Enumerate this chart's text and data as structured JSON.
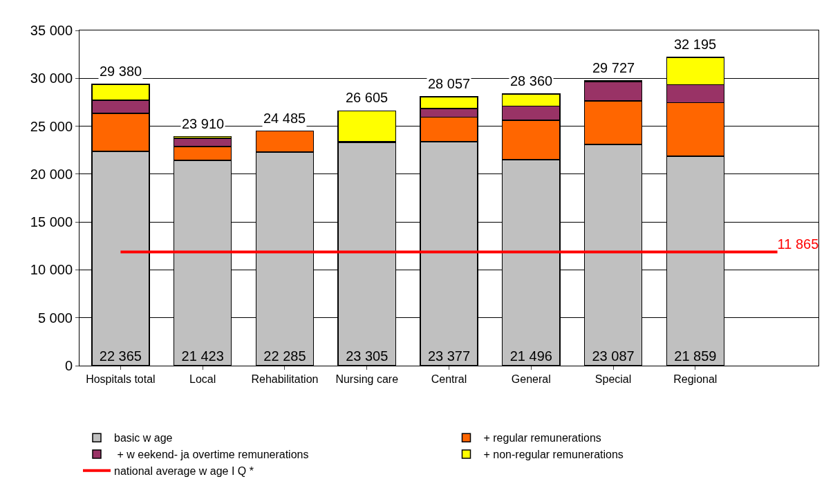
{
  "chart_data": {
    "type": "bar",
    "stacked": true,
    "categories": [
      "Hospitals total",
      "Local",
      "Rehabilitation",
      "Nursing care",
      "Central",
      "General",
      "Special",
      "Regional",
      null
    ],
    "series": [
      {
        "name": "basic w age",
        "color": "#c0c0c0",
        "values": [
          22365,
          21423,
          22285,
          23305,
          23377,
          21496,
          23087,
          21859,
          null
        ],
        "value_labels": [
          "22 365",
          "21 423",
          "22 285",
          "23 305",
          "23 377",
          "21 496",
          "23 087",
          "21 859",
          null
        ]
      },
      {
        "name": "+ regular remunerations",
        "color": "#ff6600",
        "values": [
          3970,
          1470,
          2200,
          100,
          2570,
          4120,
          4540,
          5600,
          null
        ]
      },
      {
        "name": " + w eekend- ja overtime remunerations",
        "color": "#993366",
        "values": [
          1370,
          850,
          null,
          null,
          900,
          1470,
          2000,
          1890,
          null
        ]
      },
      {
        "name": "+ non-regular remunerations",
        "color": "#ffff00",
        "values": [
          1675,
          167,
          null,
          3200,
          1210,
          1274,
          100,
          2846,
          null
        ]
      },
      {
        "name": "national average w age I Q *",
        "type": "line",
        "color": "#ff0000",
        "values": [
          11865,
          11865,
          11865,
          11865,
          11865,
          11865,
          11865,
          11865,
          11865
        ],
        "value_labels": [
          null,
          null,
          null,
          null,
          null,
          null,
          null,
          null,
          "11 865"
        ]
      }
    ],
    "totals": [
      "29 380",
      "23 910",
      "24 485",
      "26 605",
      "28 057",
      "28 360",
      "29 727",
      "32 195",
      null
    ],
    "ylim": [
      0,
      35000
    ],
    "yticks": [
      {
        "value": 0,
        "label": "0"
      },
      {
        "value": 5000,
        "label": "5 000"
      },
      {
        "value": 10000,
        "label": "10 000"
      },
      {
        "value": 15000,
        "label": "15 000"
      },
      {
        "value": 20000,
        "label": "20 000"
      },
      {
        "value": 25000,
        "label": "25 000"
      },
      {
        "value": 30000,
        "label": "30 000"
      },
      {
        "value": 35000,
        "label": "35 000"
      }
    ],
    "grid": "y",
    "legend": "bottom",
    "marker": "none",
    "line_style": "solid"
  }
}
